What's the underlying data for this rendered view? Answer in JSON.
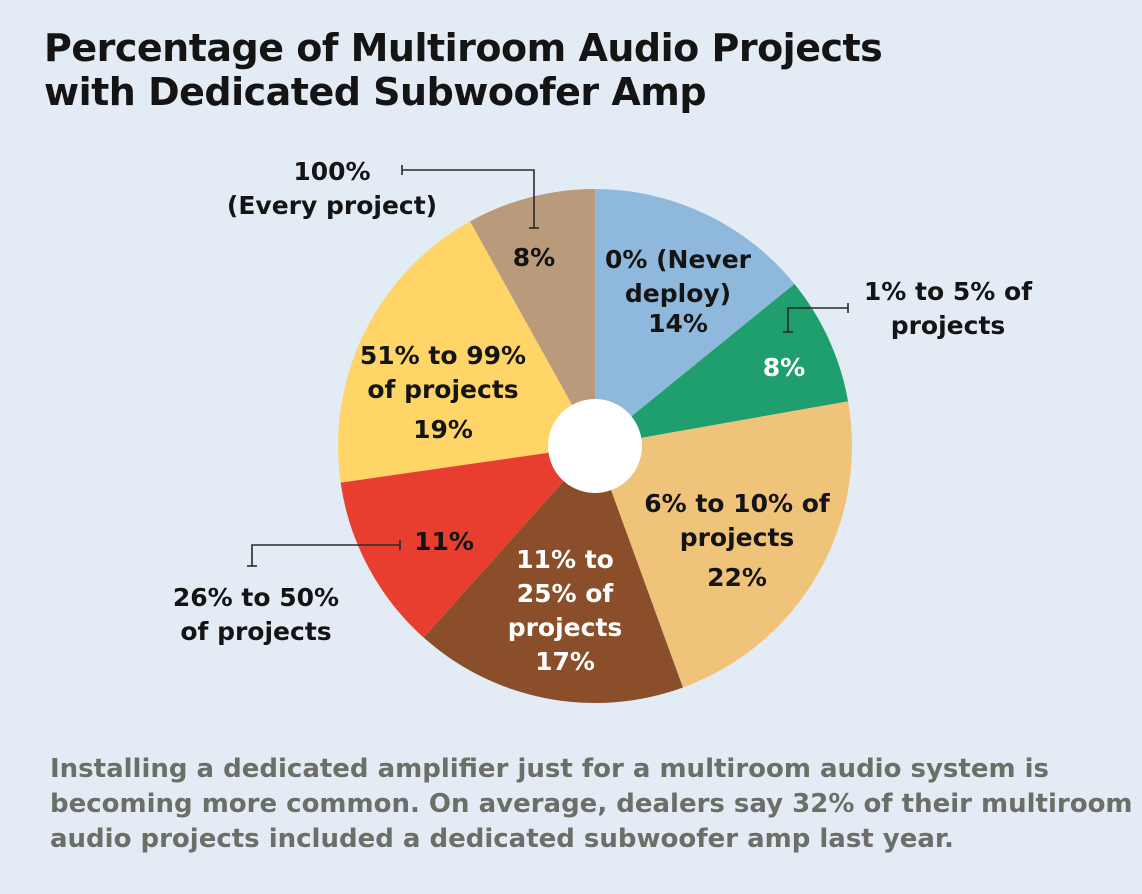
{
  "title": {
    "line1": "Percentage of Multiroom Audio Projects",
    "line2": "with Dedicated Subwoofer Amp"
  },
  "caption": {
    "line1": "Installing a dedicated amplifier just for a multiroom audio system is",
    "line2": "becoming more common. On average, dealers say 32% of their multiroom",
    "line3": "audio projects included a dedicated subwoofer amp last year."
  },
  "chart_data": {
    "type": "pie",
    "donut": true,
    "start": "top, clockwise",
    "title": "Percentage of Multiroom Audio Projects with Dedicated Subwoofer Amp",
    "slices": [
      {
        "label": "0% (Never deploy)",
        "label_lines": [
          "0% (Never",
          "deploy)"
        ],
        "value": 14,
        "value_label": "14%",
        "color": "#8fb9dc",
        "label_color": "#141414"
      },
      {
        "label": "1% to 5% of projects",
        "label_lines": [
          "1% to 5% of",
          "projects"
        ],
        "value": 8,
        "value_label": "8%",
        "color": "#1f9e6e",
        "label_color": "#ffffff"
      },
      {
        "label": "6% to 10% of projects",
        "label_lines": [
          "6% to 10% of",
          "projects"
        ],
        "value": 22,
        "value_label": "22%",
        "color": "#f0c37a",
        "label_color": "#141414"
      },
      {
        "label": "11% to 25% of projects",
        "label_lines": [
          "11% to",
          "25% of",
          "projects"
        ],
        "value": 17,
        "value_label": "17%",
        "color": "#8a4f2a",
        "label_color": "#ffffff"
      },
      {
        "label": "26% to 50% of projects",
        "label_lines": [
          "26% to 50%",
          "of projects"
        ],
        "value": 11,
        "value_label": "11%",
        "color": "#e83e30",
        "label_color": "#141414"
      },
      {
        "label": "51% to 99% of projects",
        "label_lines": [
          "51% to 99%",
          "of projects"
        ],
        "value": 19,
        "value_label": "19%",
        "color": "#fed566",
        "label_color": "#141414"
      },
      {
        "label": "100% (Every project)",
        "label_lines": [
          "100%",
          "(Every project)"
        ],
        "value": 8,
        "value_label": "8%",
        "color": "#b99a7b",
        "label_color": "#141414"
      }
    ]
  }
}
